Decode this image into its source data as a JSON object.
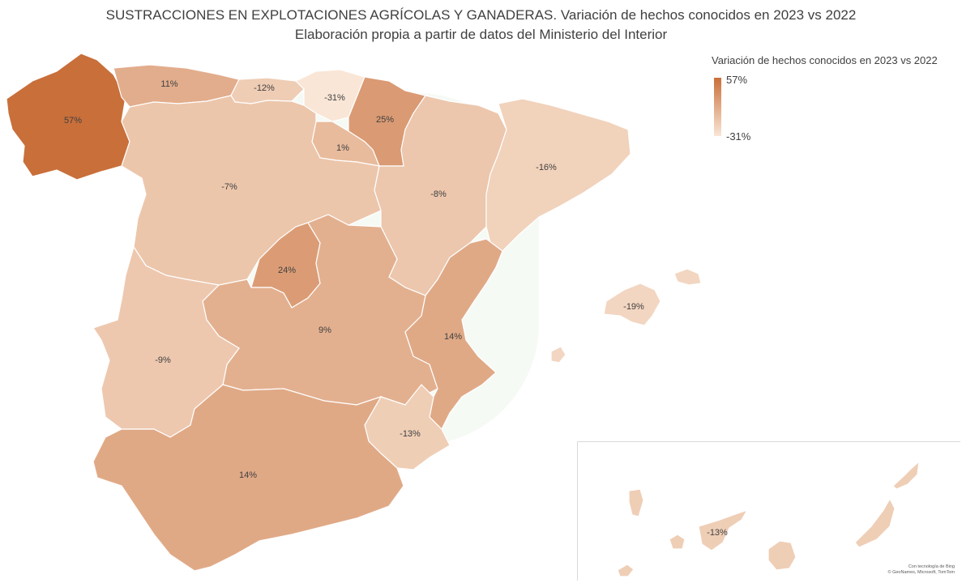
{
  "title_line1": "SUSTRACCIONES EN EXPLOTACIONES AGRÍCOLAS Y GANADERAS. Variación de hechos conocidos en 2023 vs 2022",
  "title_line2": "Elaboración propia a partir de datos del Ministerio del Interior",
  "legend": {
    "title": "Variación de hechos conocidos en 2023 vs 2022",
    "max_label": "57%",
    "min_label": "-31%",
    "max_color": "#c96f3a",
    "min_color": "#f9e6d6"
  },
  "regions": [
    {
      "id": "galicia",
      "label": "57%",
      "value": 57
    },
    {
      "id": "asturias",
      "label": "11%",
      "value": 11
    },
    {
      "id": "cantabria",
      "label": "-12%",
      "value": -12
    },
    {
      "id": "pais-vasco",
      "label": "-31%",
      "value": -31
    },
    {
      "id": "navarra",
      "label": "25%",
      "value": 25
    },
    {
      "id": "la-rioja",
      "label": "1%",
      "value": 1
    },
    {
      "id": "castilla-y-leon",
      "label": "-7%",
      "value": -7
    },
    {
      "id": "aragon",
      "label": "-8%",
      "value": -8
    },
    {
      "id": "cataluna",
      "label": "-16%",
      "value": -16
    },
    {
      "id": "madrid",
      "label": "24%",
      "value": 24
    },
    {
      "id": "castilla-la-mancha",
      "label": "9%",
      "value": 9
    },
    {
      "id": "comunidad-valenciana",
      "label": "14%",
      "value": 14
    },
    {
      "id": "extremadura",
      "label": "-9%",
      "value": -9
    },
    {
      "id": "murcia",
      "label": "-13%",
      "value": -13
    },
    {
      "id": "andalucia",
      "label": "14%",
      "value": 14
    },
    {
      "id": "baleares",
      "label": "-19%",
      "value": -19
    },
    {
      "id": "canarias",
      "label": "-13%",
      "value": -13
    }
  ],
  "attribution": {
    "line1": "Con tecnología de Bing",
    "line2": "© GeoNames, Microsoft, TomTom"
  }
}
